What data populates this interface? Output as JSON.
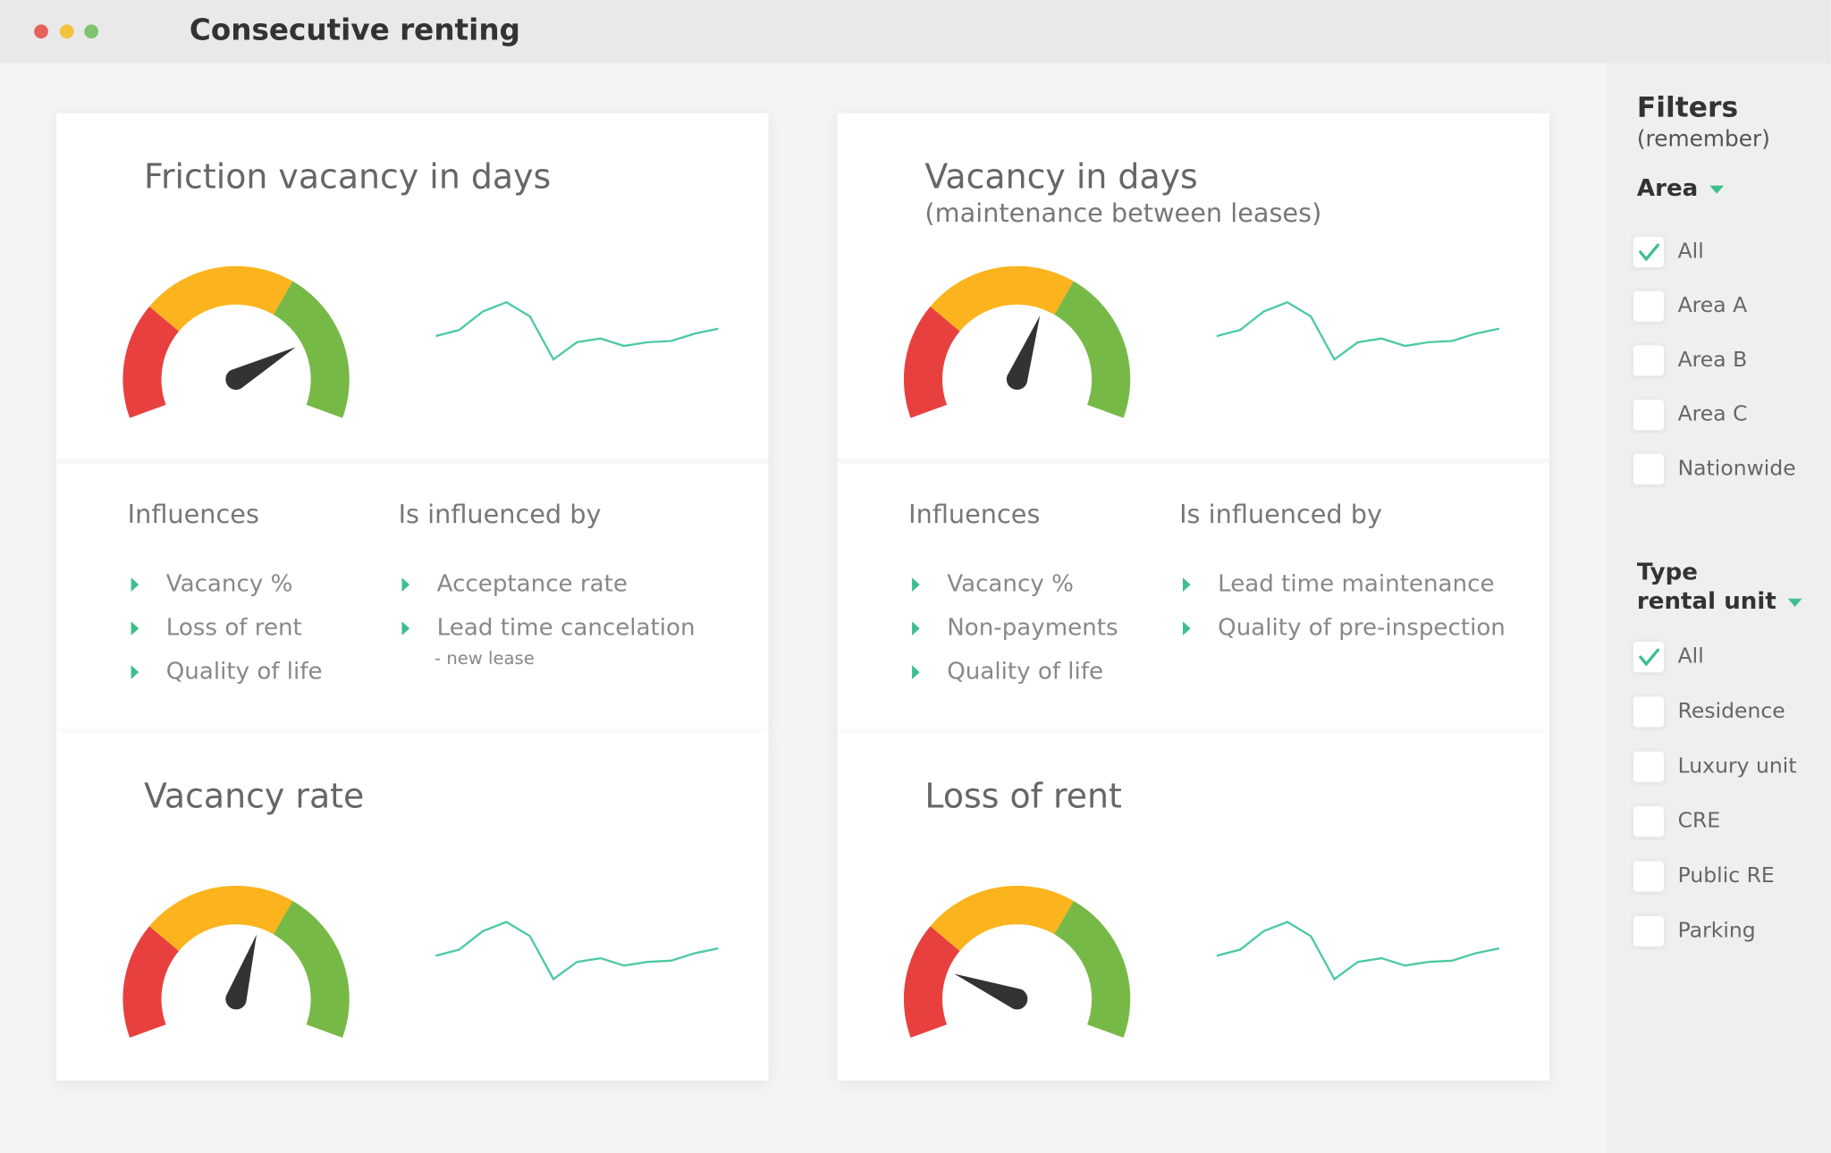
{
  "window": {
    "title": "Consecutive renting"
  },
  "cards": [
    {
      "title": "Friction vacancy in days",
      "gauge": {
        "value": 78,
        "min": 0,
        "max": 100
      },
      "trend": [
        40,
        50,
        80,
        95,
        72,
        2,
        30,
        36,
        24,
        30,
        32,
        44,
        52
      ]
    },
    {
      "title": "Vacancy in days",
      "subtitle": "(maintenance between leases)",
      "gauge": {
        "value": 59,
        "min": 0,
        "max": 100
      },
      "trend": [
        40,
        50,
        80,
        95,
        72,
        2,
        30,
        36,
        24,
        30,
        32,
        44,
        52
      ]
    },
    {
      "title": "Vacancy rate",
      "gauge": {
        "value": 58,
        "min": 0,
        "max": 100
      },
      "trend": [
        40,
        50,
        80,
        95,
        72,
        2,
        30,
        36,
        24,
        30,
        32,
        44,
        52
      ]
    },
    {
      "title": "Loss of rent",
      "gauge": {
        "value": 19,
        "min": 0,
        "max": 100
      },
      "trend": [
        40,
        50,
        80,
        95,
        72,
        2,
        30,
        36,
        24,
        30,
        32,
        44,
        52
      ]
    }
  ],
  "panels": [
    {
      "influences_heading": "Influences",
      "influenced_heading": "Is influenced by",
      "influences": [
        "Vacancy %",
        "Loss of rent",
        "Quality of life"
      ],
      "influenced": [
        "Acceptance rate",
        "Lead time cancelation"
      ],
      "note": "- new lease"
    },
    {
      "influences_heading": "Influences",
      "influenced_heading": "Is influenced by",
      "influences": [
        "Vacancy %",
        "Non-payments",
        "Quality of life"
      ],
      "influenced": [
        "Lead time maintenance",
        "Quality of pre-inspection"
      ]
    }
  ],
  "filters": {
    "title": "Filters",
    "subtitle": "(remember)",
    "groups": [
      {
        "label": [
          "Area"
        ],
        "options": [
          {
            "label": "All",
            "checked": true
          },
          {
            "label": "Area A",
            "checked": false
          },
          {
            "label": "Area B",
            "checked": false
          },
          {
            "label": "Area C",
            "checked": false
          },
          {
            "label": "Nationwide",
            "checked": false
          }
        ]
      },
      {
        "label": [
          "Type",
          "rental unit"
        ],
        "options": [
          {
            "label": "All",
            "checked": true
          },
          {
            "label": "Residence",
            "checked": false
          },
          {
            "label": "Luxury unit",
            "checked": false
          },
          {
            "label": "CRE",
            "checked": false
          },
          {
            "label": "Public RE",
            "checked": false
          },
          {
            "label": "Parking",
            "checked": false
          }
        ]
      }
    ]
  }
}
